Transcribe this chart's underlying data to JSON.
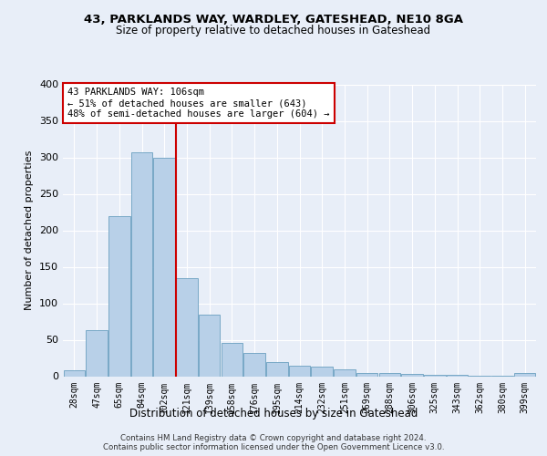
{
  "title1": "43, PARKLANDS WAY, WARDLEY, GATESHEAD, NE10 8GA",
  "title2": "Size of property relative to detached houses in Gateshead",
  "xlabel": "Distribution of detached houses by size in Gateshead",
  "ylabel": "Number of detached properties",
  "categories": [
    "28sqm",
    "47sqm",
    "65sqm",
    "84sqm",
    "102sqm",
    "121sqm",
    "139sqm",
    "158sqm",
    "176sqm",
    "195sqm",
    "214sqm",
    "232sqm",
    "251sqm",
    "269sqm",
    "288sqm",
    "306sqm",
    "325sqm",
    "343sqm",
    "362sqm",
    "380sqm",
    "399sqm"
  ],
  "values": [
    8,
    63,
    220,
    307,
    300,
    135,
    85,
    46,
    32,
    20,
    15,
    13,
    10,
    5,
    5,
    3,
    2,
    2,
    1,
    1,
    4
  ],
  "bar_color": "#b8d0e8",
  "bar_edge_color": "#6a9fc0",
  "red_line_x": 4.5,
  "annotation_text": "43 PARKLANDS WAY: 106sqm\n← 51% of detached houses are smaller (643)\n48% of semi-detached houses are larger (604) →",
  "annotation_box_color": "#ffffff",
  "annotation_box_edge": "#cc0000",
  "ylim": [
    0,
    400
  ],
  "yticks": [
    0,
    50,
    100,
    150,
    200,
    250,
    300,
    350,
    400
  ],
  "footer1": "Contains HM Land Registry data © Crown copyright and database right 2024.",
  "footer2": "Contains public sector information licensed under the Open Government Licence v3.0.",
  "bg_color": "#e8eef8",
  "plot_bg_color": "#e8eef8"
}
